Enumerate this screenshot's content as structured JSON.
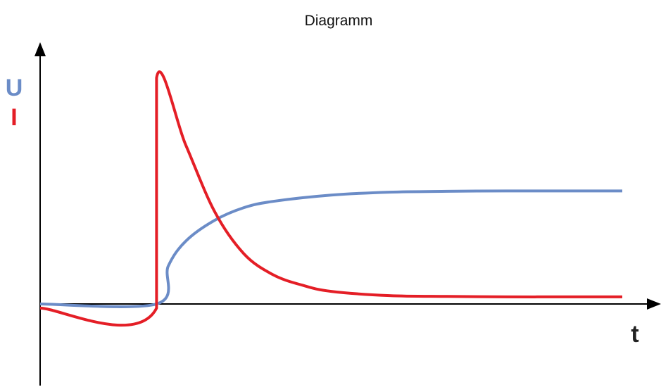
{
  "chart_data": {
    "type": "line",
    "title": "Diagramm",
    "xlabel": "t",
    "ylabel_labels": [
      {
        "text": "U",
        "color": "#6b8cc7"
      },
      {
        "text": "I",
        "color": "#e41e26"
      }
    ],
    "xlim": [
      0,
      10
    ],
    "ylim": [
      -2,
      6.4
    ],
    "grid": false,
    "series": [
      {
        "name": "U",
        "color": "#6b8cc7",
        "x": [
          0,
          2,
          2.2,
          2.5,
          3.0,
          3.5,
          4.0,
          5.0,
          6.0,
          7.0,
          8.0,
          9.0,
          10.0
        ],
        "y": [
          0,
          0,
          0.9,
          1.5,
          2.0,
          2.3,
          2.45,
          2.6,
          2.67,
          2.69,
          2.7,
          2.7,
          2.7
        ]
      },
      {
        "name": "I",
        "color": "#e41e26",
        "x": [
          0,
          2,
          2.0,
          2.5,
          3.0,
          3.5,
          4.0,
          4.5,
          5.0,
          6.0,
          7.0,
          8.0,
          9.0,
          10.0
        ],
        "y": [
          -0.1,
          -0.1,
          5.4,
          3.8,
          2.2,
          1.2,
          0.7,
          0.45,
          0.3,
          0.2,
          0.18,
          0.17,
          0.17,
          0.17
        ]
      }
    ]
  }
}
